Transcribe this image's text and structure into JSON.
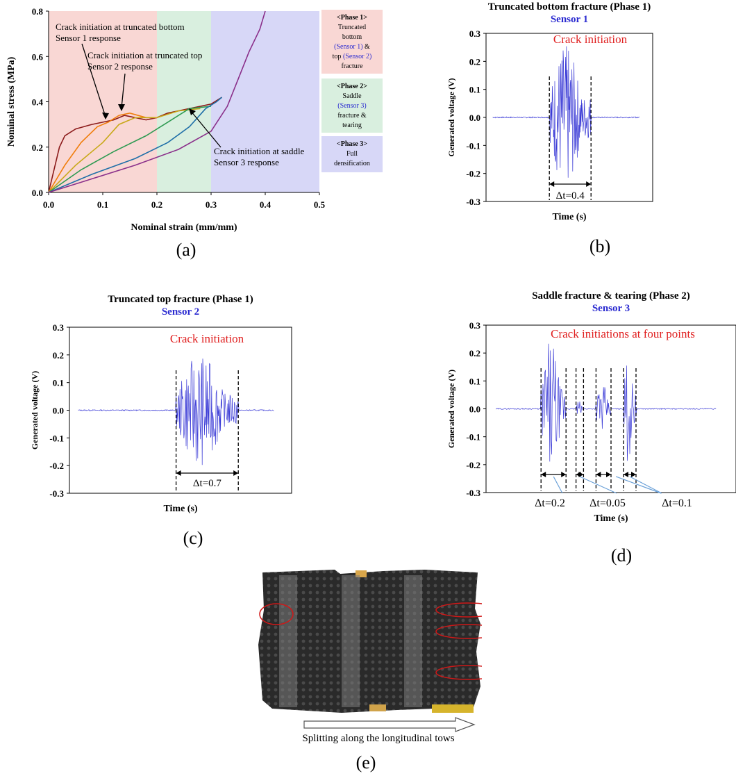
{
  "panels": {
    "a": {
      "caption": "(a)",
      "chart_data": {
        "type": "line",
        "xlabel": "Nominal strain (mm/mm)",
        "ylabel": "Nominal stress (MPa)",
        "xlim": [
          0,
          0.5
        ],
        "ylim": [
          0,
          0.8
        ],
        "xticks": [
          "0.0",
          "0.1",
          "0.2",
          "0.3",
          "0.4",
          "0.5"
        ],
        "yticks": [
          "0.0",
          "0.2",
          "0.4",
          "0.6",
          "0.8"
        ],
        "series": [
          {
            "color": "#8b1a1a",
            "x": [
              0,
              0.01,
              0.02,
              0.03,
              0.05,
              0.08,
              0.1,
              0.12,
              0.14,
              0.16,
              0.18,
              0.2,
              0.22,
              0.26,
              0.3,
              0.32
            ],
            "y": [
              0,
              0.1,
              0.2,
              0.25,
              0.28,
              0.3,
              0.31,
              0.32,
              0.34,
              0.33,
              0.32,
              0.33,
              0.35,
              0.37,
              0.39,
              0.42
            ]
          },
          {
            "color": "#f07d0a",
            "x": [
              0,
              0.03,
              0.06,
              0.09,
              0.11,
              0.13,
              0.15,
              0.18,
              0.2
            ],
            "y": [
              0,
              0.12,
              0.22,
              0.29,
              0.31,
              0.34,
              0.35,
              0.33,
              0.33
            ]
          },
          {
            "color": "#c8a818",
            "x": [
              0,
              0.05,
              0.1,
              0.13,
              0.16,
              0.2,
              0.24,
              0.28
            ],
            "y": [
              0,
              0.12,
              0.22,
              0.3,
              0.33,
              0.33,
              0.36,
              0.37
            ]
          },
          {
            "color": "#2e9a52",
            "x": [
              0,
              0.06,
              0.12,
              0.18,
              0.22,
              0.26,
              0.3
            ],
            "y": [
              0,
              0.1,
              0.18,
              0.25,
              0.31,
              0.37,
              0.38
            ]
          },
          {
            "color": "#1f6fa8",
            "x": [
              0,
              0.08,
              0.16,
              0.22,
              0.26,
              0.29,
              0.31,
              0.32
            ],
            "y": [
              0,
              0.08,
              0.15,
              0.22,
              0.29,
              0.37,
              0.4,
              0.42
            ]
          },
          {
            "color": "#8a2f8a",
            "x": [
              0,
              0.08,
              0.16,
              0.24,
              0.3,
              0.33,
              0.35,
              0.37,
              0.39,
              0.4
            ],
            "y": [
              0,
              0.06,
              0.12,
              0.19,
              0.27,
              0.38,
              0.5,
              0.62,
              0.72,
              0.8
            ]
          }
        ],
        "phases": [
          {
            "name": "Phase 1",
            "range": [
              0,
              0.2
            ],
            "color": "#f9d7d4"
          },
          {
            "name": "Phase 2",
            "range": [
              0.2,
              0.3
            ],
            "color": "#d9efdf"
          },
          {
            "name": "Phase 3",
            "range": [
              0.3,
              0.5
            ],
            "color": "#d7d7f7"
          }
        ],
        "annotations": [
          {
            "lines": [
              "Crack initiation at truncated bottom",
              "Sensor 1 response"
            ]
          },
          {
            "lines": [
              "Crack initiation at truncated top",
              "Sensor 2 response"
            ]
          },
          {
            "lines": [
              "Crack initiation at saddle",
              "Sensor 3 response"
            ]
          }
        ],
        "phase_boxes": [
          {
            "title": "<Phase 1>",
            "line1": "Truncated",
            "line2": "bottom",
            "line3": "(Sensor 1)",
            "line3b": " &",
            "line4": "top ",
            "line4b": "(Sensor 2)",
            "line5": "fracture",
            "color": "#f9d7d4"
          },
          {
            "title": "<Phase 2>",
            "line1": "Saddle",
            "line2": "(Sensor 3)",
            "line3": "fracture &",
            "line4": "tearing",
            "color": "#d9efdf"
          },
          {
            "title": "<Phase 3>",
            "line1": "Full",
            "line2": "densification",
            "color": "#d7d7f7"
          }
        ]
      }
    },
    "b": {
      "caption": "(b)",
      "chart_data": {
        "type": "line",
        "title": "Truncated bottom fracture (Phase 1)",
        "subtitle": "Sensor 1",
        "xlabel": "Time (s)",
        "ylabel": "Generated voltage (V)",
        "ylim": [
          -0.3,
          0.3
        ],
        "yticks": [
          "0.3",
          "0.2",
          "0.1",
          "0.0",
          "-0.1",
          "-0.2",
          "-0.3"
        ],
        "annotation": "Crack initiation",
        "dt_labels": [
          "Δt=0.4"
        ],
        "bursts": [
          {
            "start": 0.38,
            "end": 0.63,
            "amp": 0.26
          }
        ],
        "color": "#3a3ad6"
      }
    },
    "c": {
      "caption": "(c)",
      "chart_data": {
        "type": "line",
        "title": "Truncated top fracture (Phase 1)",
        "subtitle": "Sensor 2",
        "xlabel": "Time (s)",
        "ylabel": "Generated voltage (V)",
        "ylim": [
          -0.3,
          0.3
        ],
        "yticks": [
          "0.3",
          "0.2",
          "0.1",
          "0.0",
          "-0.1",
          "-0.2",
          "-0.3"
        ],
        "annotation": "Crack initiation",
        "dt_labels": [
          "Δt=0.7"
        ],
        "bursts": [
          {
            "start": 0.48,
            "end": 0.76,
            "amp": 0.2
          }
        ],
        "color": "#3a3ad6"
      }
    },
    "d": {
      "caption": "(d)",
      "chart_data": {
        "type": "line",
        "title": "Saddle fracture & tearing (Phase 2)",
        "subtitle": "Sensor 3",
        "xlabel": "Time (s)",
        "ylabel": "Generated voltage (V)",
        "ylim": [
          -0.3,
          0.3
        ],
        "yticks": [
          "0.3",
          "0.2",
          "0.1",
          "0.0",
          "-0.1",
          "-0.2",
          "-0.3"
        ],
        "annotation": "Crack initiations at four points",
        "dt_labels": [
          "Δt=0.2",
          "Δt=0.05",
          "Δt=0.1"
        ],
        "bursts": [
          {
            "start": 0.22,
            "end": 0.32,
            "amp": 0.25
          },
          {
            "start": 0.36,
            "end": 0.39,
            "amp": 0.03
          },
          {
            "start": 0.44,
            "end": 0.5,
            "amp": 0.1
          },
          {
            "start": 0.55,
            "end": 0.6,
            "amp": 0.2
          }
        ],
        "color": "#3a3ad6"
      }
    },
    "e": {
      "caption": "(e)",
      "photo_caption": "Splitting along the longitudinal tows"
    }
  }
}
